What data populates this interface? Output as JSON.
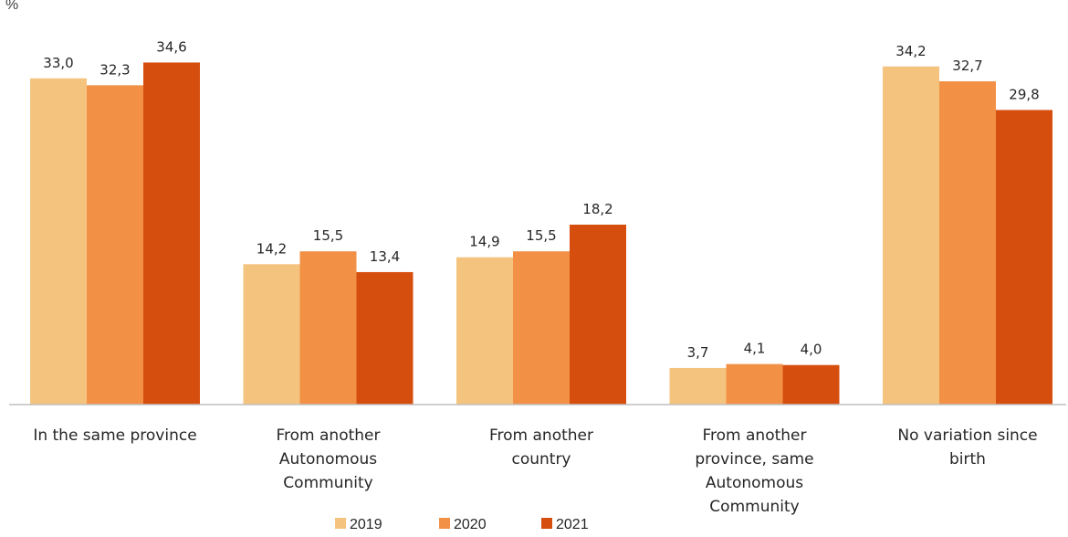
{
  "chart_data": {
    "type": "bar",
    "title": "",
    "unit_label": "%",
    "categories": [
      [
        "In the same province"
      ],
      [
        "From another",
        "Autonomous",
        "Community"
      ],
      [
        "From another",
        "country"
      ],
      [
        "From another",
        "province, same",
        "Autonomous",
        "Community"
      ],
      [
        "No variation since",
        "birth"
      ]
    ],
    "series": [
      {
        "name": "2019",
        "color": "#F4C47F",
        "values": [
          33.0,
          14.2,
          14.9,
          3.7,
          34.2
        ],
        "labels": [
          "33,0",
          "14,2",
          "14,9",
          "3,7",
          "34,2"
        ]
      },
      {
        "name": "2020",
        "color": "#F29146",
        "values": [
          32.3,
          15.5,
          15.5,
          4.1,
          32.7
        ],
        "labels": [
          "32,3",
          "15,5",
          "15,5",
          "4,1",
          "32,7"
        ]
      },
      {
        "name": "2021",
        "color": "#D64E0E",
        "values": [
          34.6,
          13.4,
          18.2,
          4.0,
          29.8
        ],
        "labels": [
          "34,6",
          "13,4",
          "18,2",
          "4,0",
          "29,8"
        ]
      }
    ],
    "ylim": [
      0,
      40
    ],
    "grid": false,
    "legend_position": "bottom"
  }
}
